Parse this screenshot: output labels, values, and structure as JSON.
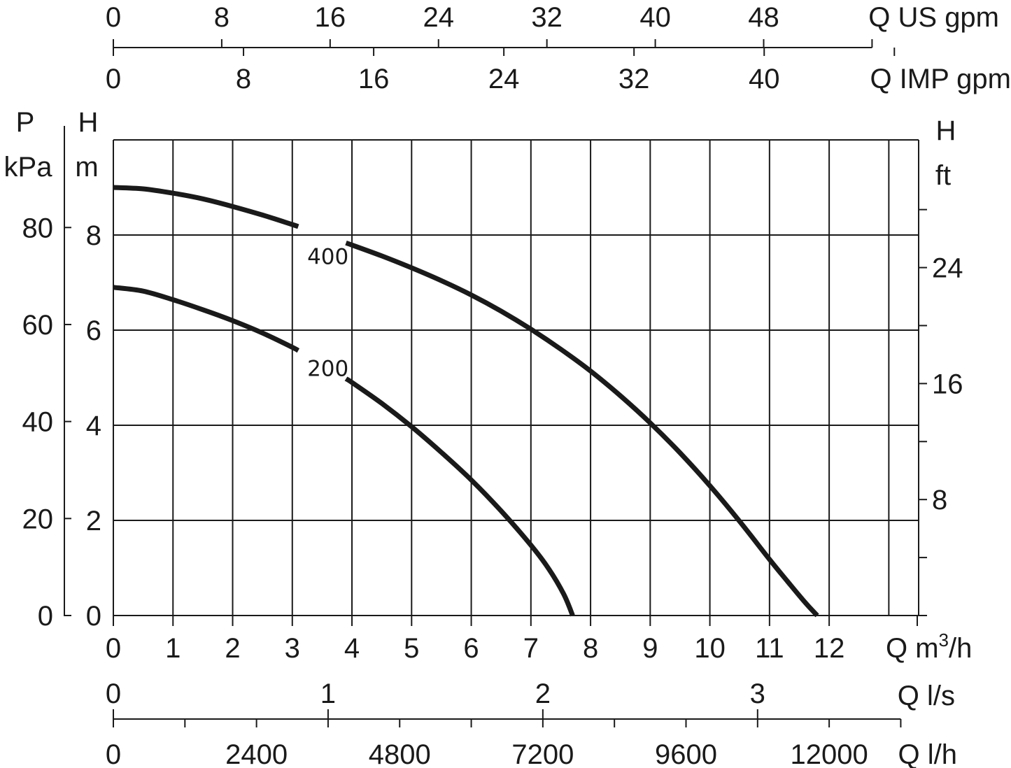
{
  "chart_data": {
    "type": "line",
    "x_min": 0,
    "x_max": 13.5,
    "y_min": 0,
    "y_max": 10,
    "grid": true,
    "series": [
      {
        "name": "400",
        "x": [
          0,
          0.5,
          1,
          1.5,
          2,
          2.5,
          3,
          3.5,
          4,
          4.5,
          5,
          5.5,
          6,
          6.5,
          7,
          7.5,
          8,
          8.5,
          9,
          9.5,
          10,
          10.5,
          11,
          11.3,
          11.6,
          11.8
        ],
        "y": [
          9.0,
          8.97,
          8.88,
          8.76,
          8.6,
          8.42,
          8.22,
          8.01,
          7.79,
          7.56,
          7.31,
          7.04,
          6.74,
          6.4,
          6.02,
          5.6,
          5.14,
          4.62,
          4.05,
          3.42,
          2.73,
          1.98,
          1.18,
          0.72,
          0.27,
          0.0
        ]
      },
      {
        "name": "200",
        "x": [
          0,
          0.5,
          1,
          1.5,
          2,
          2.5,
          3,
          3.5,
          4,
          4.5,
          5,
          5.5,
          6,
          6.5,
          7,
          7.3,
          7.55,
          7.7
        ],
        "y": [
          6.9,
          6.82,
          6.64,
          6.43,
          6.2,
          5.94,
          5.64,
          5.29,
          4.9,
          4.46,
          3.97,
          3.43,
          2.85,
          2.2,
          1.48,
          0.98,
          0.45,
          0.0
        ]
      }
    ],
    "label_gap_x": [
      3.1,
      3.9
    ],
    "label_pos": {
      "400": [
        3.25,
        7.55
      ],
      "200": [
        3.25,
        5.2
      ]
    },
    "axes": {
      "m3h": {
        "ticks": [
          0,
          1,
          2,
          3,
          4,
          5,
          6,
          7,
          8,
          9,
          10,
          11,
          12
        ],
        "title": "Q m",
        "title_sup": "3",
        "title_end": "/h"
      },
      "m": {
        "ticks": [
          0,
          2,
          4,
          6,
          8
        ],
        "title_top": "H",
        "title_bottom": "m"
      },
      "kpa": {
        "ticks": [
          0,
          20,
          40,
          60,
          80
        ],
        "title_top": "P",
        "title_bottom": "kPa"
      },
      "ft": {
        "ticks": [
          8,
          16,
          24
        ],
        "minor_ticks": [
          4,
          8,
          12,
          16,
          20,
          24,
          28
        ],
        "title_top": "H",
        "title_bottom": "ft"
      },
      "us_gpm": {
        "ticks": [
          0,
          8,
          16,
          24,
          32,
          40,
          48
        ],
        "extra_tick": 56,
        "title": "Q US gpm"
      },
      "imp_gpm": {
        "ticks": [
          0,
          8,
          16,
          24,
          32,
          40
        ],
        "extra_tick": 48,
        "title": "Q IMP gpm"
      },
      "ls": {
        "ticks": [
          0,
          1,
          2,
          3
        ],
        "title": "Q l/s"
      },
      "lh": {
        "ticks": [
          0,
          2400,
          4800,
          7200,
          9600,
          12000
        ],
        "minor_step": 1200,
        "minor_max": 13200,
        "title": "Q l/h"
      }
    }
  }
}
